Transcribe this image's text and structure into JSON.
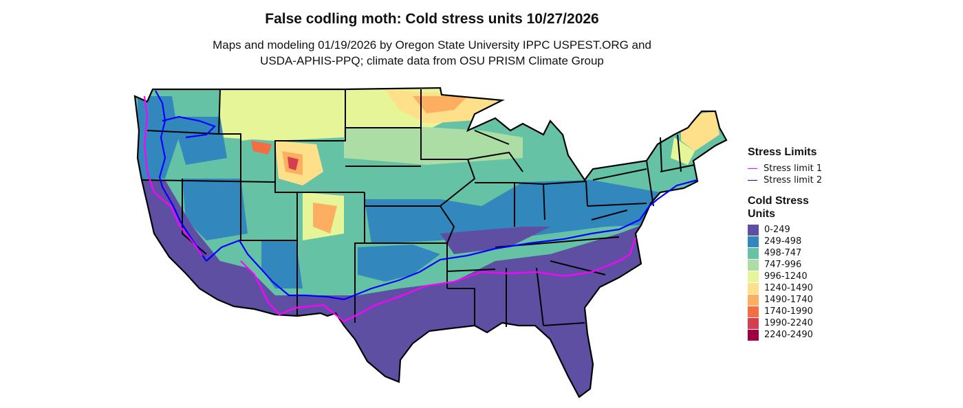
{
  "title": "False codling moth: Cold stress units 10/27/2026",
  "subtitle_lines": [
    "Maps and modeling 01/19/2026 by Oregon State University IPPC USPEST.ORG and",
    "USDA-APHIS-PPQ; climate data from OSU PRISM Climate Group"
  ],
  "legend_stress": {
    "title": "Stress Limits",
    "items": [
      {
        "label": "Stress limit 1",
        "color": "#ff00ff"
      },
      {
        "label": "Stress limit 2",
        "color": "#0000ff"
      }
    ]
  },
  "legend_csu": {
    "title_lines": [
      "Cold Stress",
      "Units"
    ],
    "bins": [
      {
        "label": "0-249",
        "color": "#5e4fa2"
      },
      {
        "label": "249-498",
        "color": "#3288bd"
      },
      {
        "label": "498-747",
        "color": "#66c2a5"
      },
      {
        "label": "747-996",
        "color": "#abdda4"
      },
      {
        "label": "996-1240",
        "color": "#e6f598"
      },
      {
        "label": "1240-1490",
        "color": "#fee08b"
      },
      {
        "label": "1490-1740",
        "color": "#fdae61"
      },
      {
        "label": "1740-1990",
        "color": "#f46d43"
      },
      {
        "label": "1990-2240",
        "color": "#d53e4f"
      },
      {
        "label": "2240-2490",
        "color": "#9e0142"
      }
    ]
  }
}
